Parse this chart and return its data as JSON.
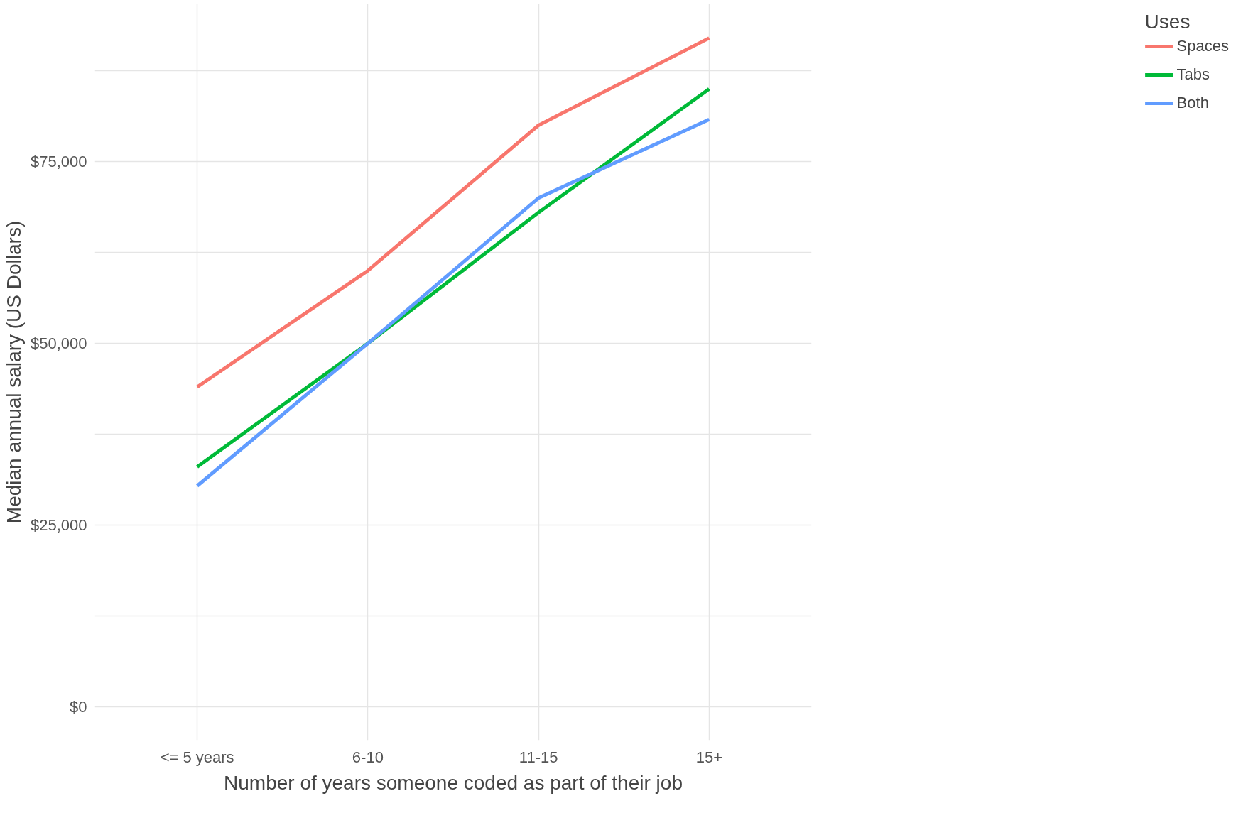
{
  "chart_data": {
    "type": "line",
    "xlabel": "Number of years someone coded as part of their job",
    "ylabel": "Median annual salary (US Dollars)",
    "legend_title": "Uses",
    "categories": [
      "<= 5 years",
      "6-10",
      "11-15",
      "15+"
    ],
    "series": [
      {
        "name": "Spaces",
        "color": "#f8766d",
        "values": [
          44000,
          60000,
          80000,
          92000
        ]
      },
      {
        "name": "Tabs",
        "color": "#00ba38",
        "values": [
          33000,
          50000,
          68000,
          85000
        ]
      },
      {
        "name": "Both",
        "color": "#619cff",
        "values": [
          30400,
          50000,
          70000,
          80800
        ]
      }
    ],
    "ylim": [
      -4600,
      96700
    ],
    "yticks": [
      {
        "value": 0,
        "label": "$0"
      },
      {
        "value": 12500,
        "label": null
      },
      {
        "value": 25000,
        "label": "$25,000"
      },
      {
        "value": 37500,
        "label": null
      },
      {
        "value": 50000,
        "label": "$50,000"
      },
      {
        "value": 62500,
        "label": null
      },
      {
        "value": 75000,
        "label": "$75,000"
      },
      {
        "value": 87500,
        "label": null
      }
    ],
    "grid": true,
    "legend": "right",
    "line_style": "solid",
    "marker": "none"
  }
}
